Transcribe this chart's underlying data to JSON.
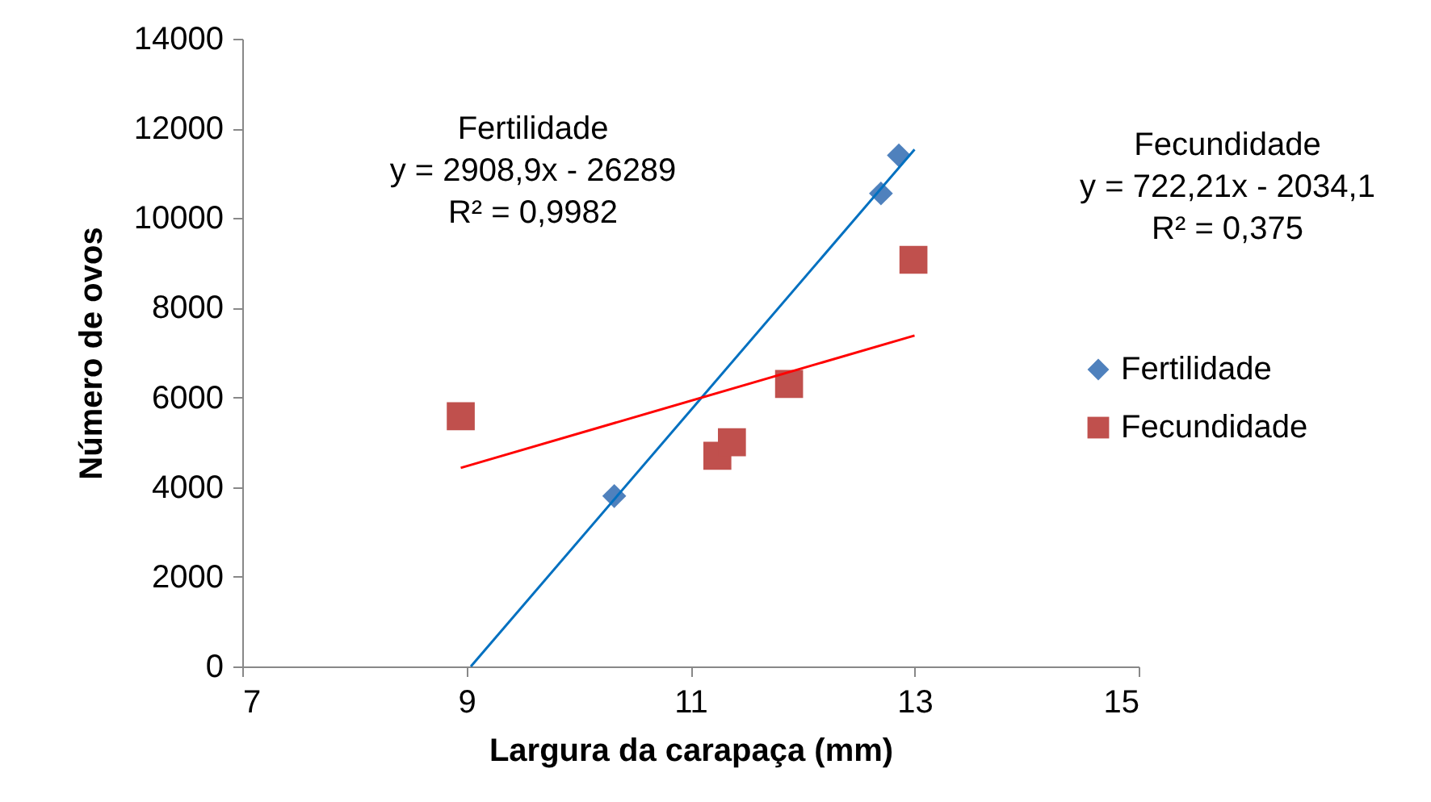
{
  "chart_data": {
    "type": "scatter",
    "xlabel": "Largura da carapaça (mm)",
    "ylabel": "Número de ovos",
    "xlim": [
      7,
      15
    ],
    "xticks": [
      7,
      9,
      11,
      13,
      15
    ],
    "ylim": [
      0,
      14000
    ],
    "yticks": [
      0,
      2000,
      4000,
      6000,
      8000,
      10000,
      12000,
      14000
    ],
    "grid": false,
    "legend": "right",
    "annotations": [
      "Fertilidade\ny = 2908,9x - 26289\nR² = 0,9982",
      "Fecundidade\ny = 722,21x - 2034,1\nR² = 0,375"
    ],
    "series": [
      {
        "name": "Fertilidade",
        "marker": "diamond",
        "color": "#4f81bd",
        "x": [
          10.32,
          12.7,
          12.86
        ],
        "values": [
          3800,
          10550,
          11400
        ]
      },
      {
        "name": "Fecundidade",
        "marker": "square",
        "color": "#c0504d",
        "x": [
          8.95,
          11.24,
          11.37,
          11.88,
          12.99
        ],
        "values": [
          5580,
          4700,
          5000,
          6300,
          9070
        ]
      },
      {
        "type": "line",
        "color": "#0070c0",
        "x": [
          9.04,
          13.0
        ],
        "values": [
          0,
          11530
        ]
      },
      {
        "type": "line",
        "color": "#ff0000",
        "x": [
          8.95,
          13.0
        ],
        "values": [
          4430,
          7380
        ]
      }
    ]
  }
}
